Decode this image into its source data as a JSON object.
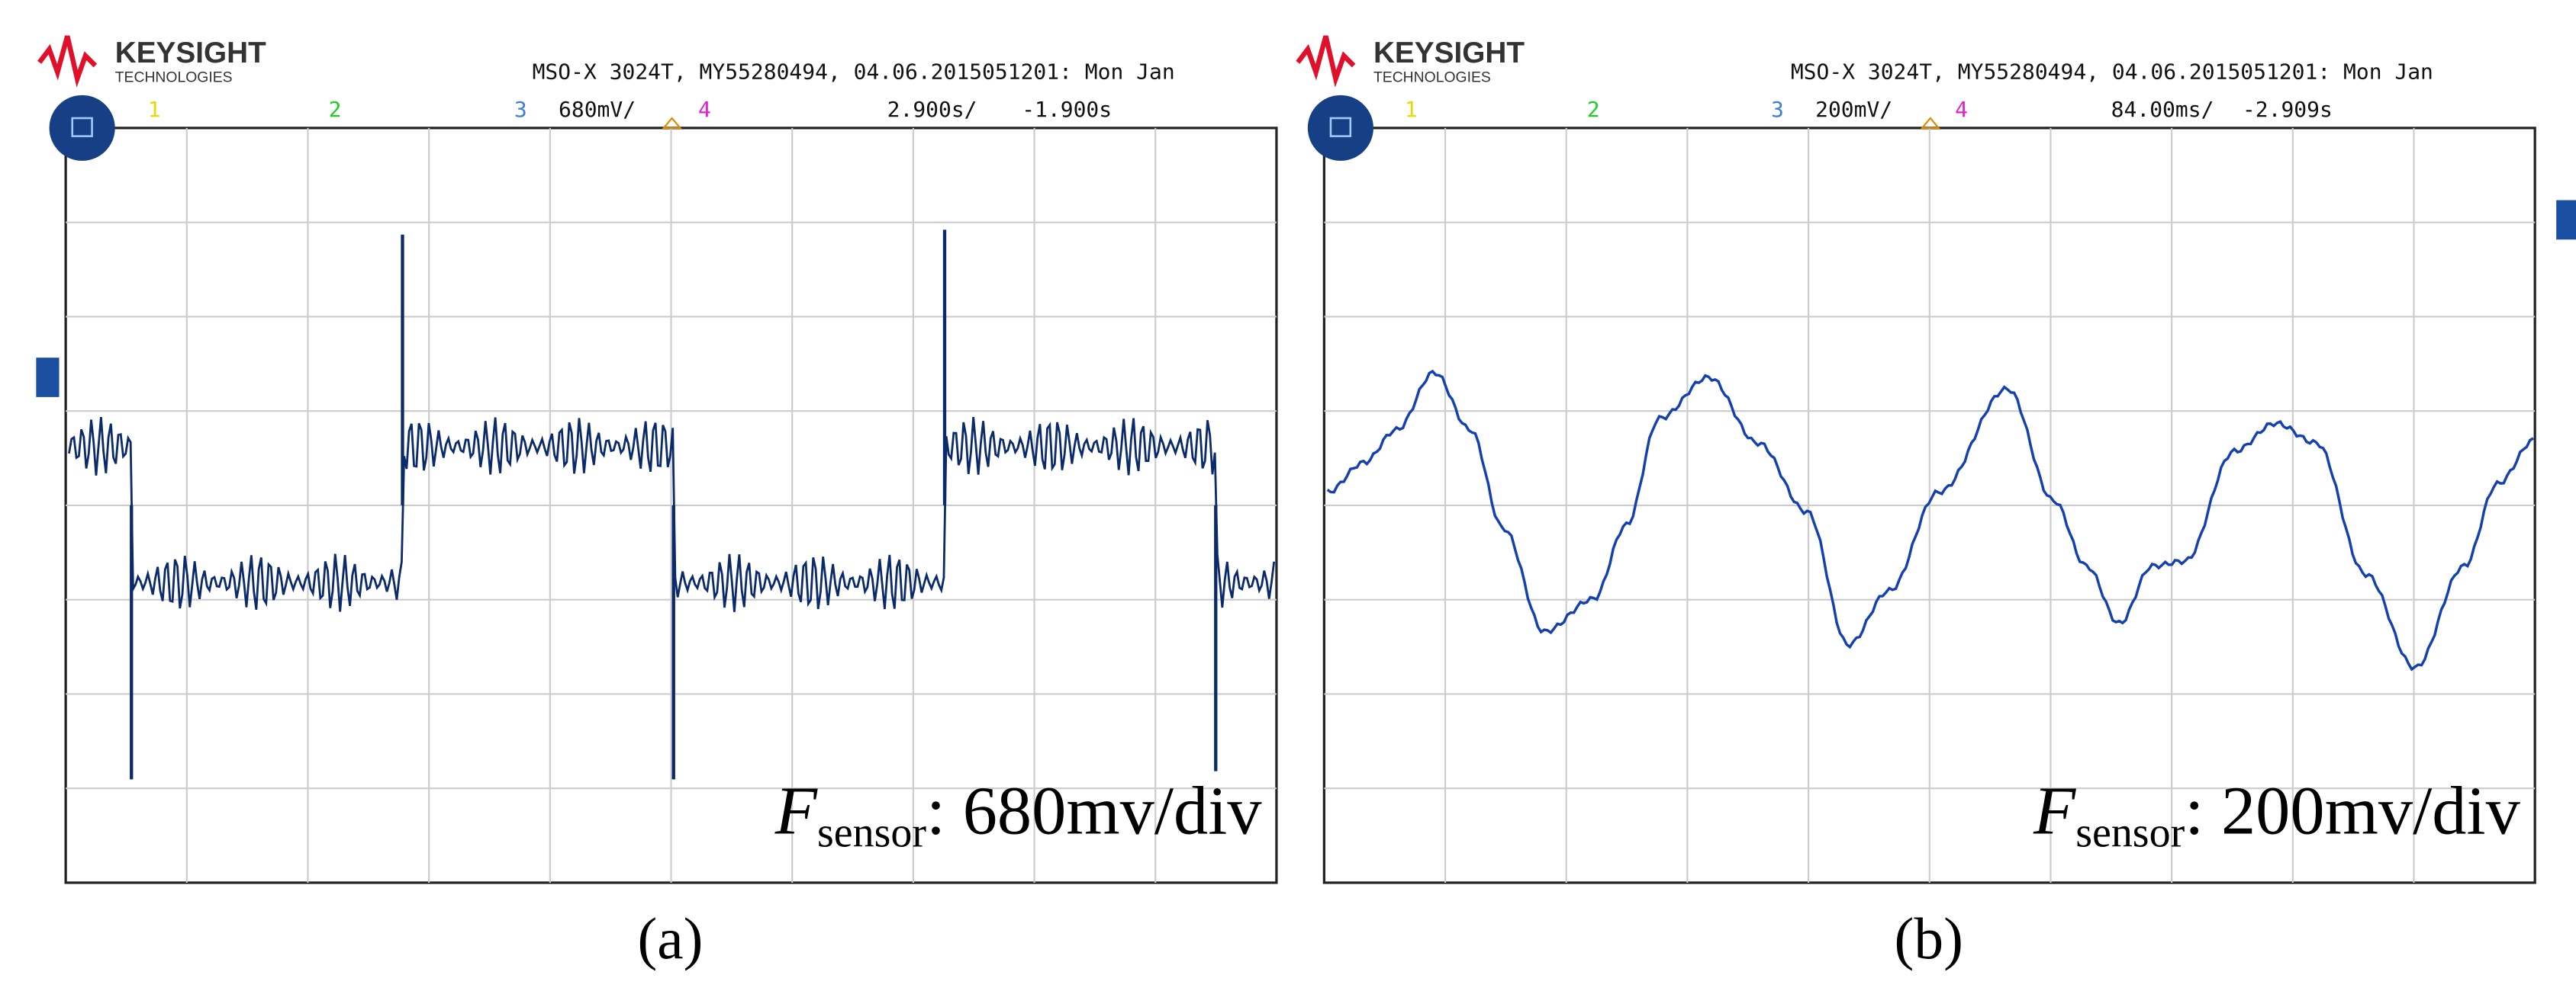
{
  "panels": [
    {
      "brand": "KEYSIGHT",
      "brand_sub": "TECHNOLOGIES",
      "instrument": "MSO-X 3024T, MY55280494, 04.06.2015051201: Mon Jan",
      "channels": [
        "1",
        "2",
        "3",
        "4"
      ],
      "scale": "680mV/",
      "timebase": "2.900s/",
      "delay": "-1.900s",
      "label_var": "F",
      "label_sub": "sensor",
      "label_rest": ": 680mv/div",
      "caption": "(a)"
    },
    {
      "brand": "KEYSIGHT",
      "brand_sub": "TECHNOLOGIES",
      "instrument": "MSO-X 3024T, MY55280494, 04.06.2015051201: Mon Jan",
      "channels": [
        "1",
        "2",
        "3",
        "4"
      ],
      "scale": "200mV/",
      "timebase": "84.00ms/",
      "delay": "-2.909s",
      "label_var": "F",
      "label_sub": "sensor",
      "label_rest": ": 200mv/div",
      "caption": "(b)"
    }
  ]
}
